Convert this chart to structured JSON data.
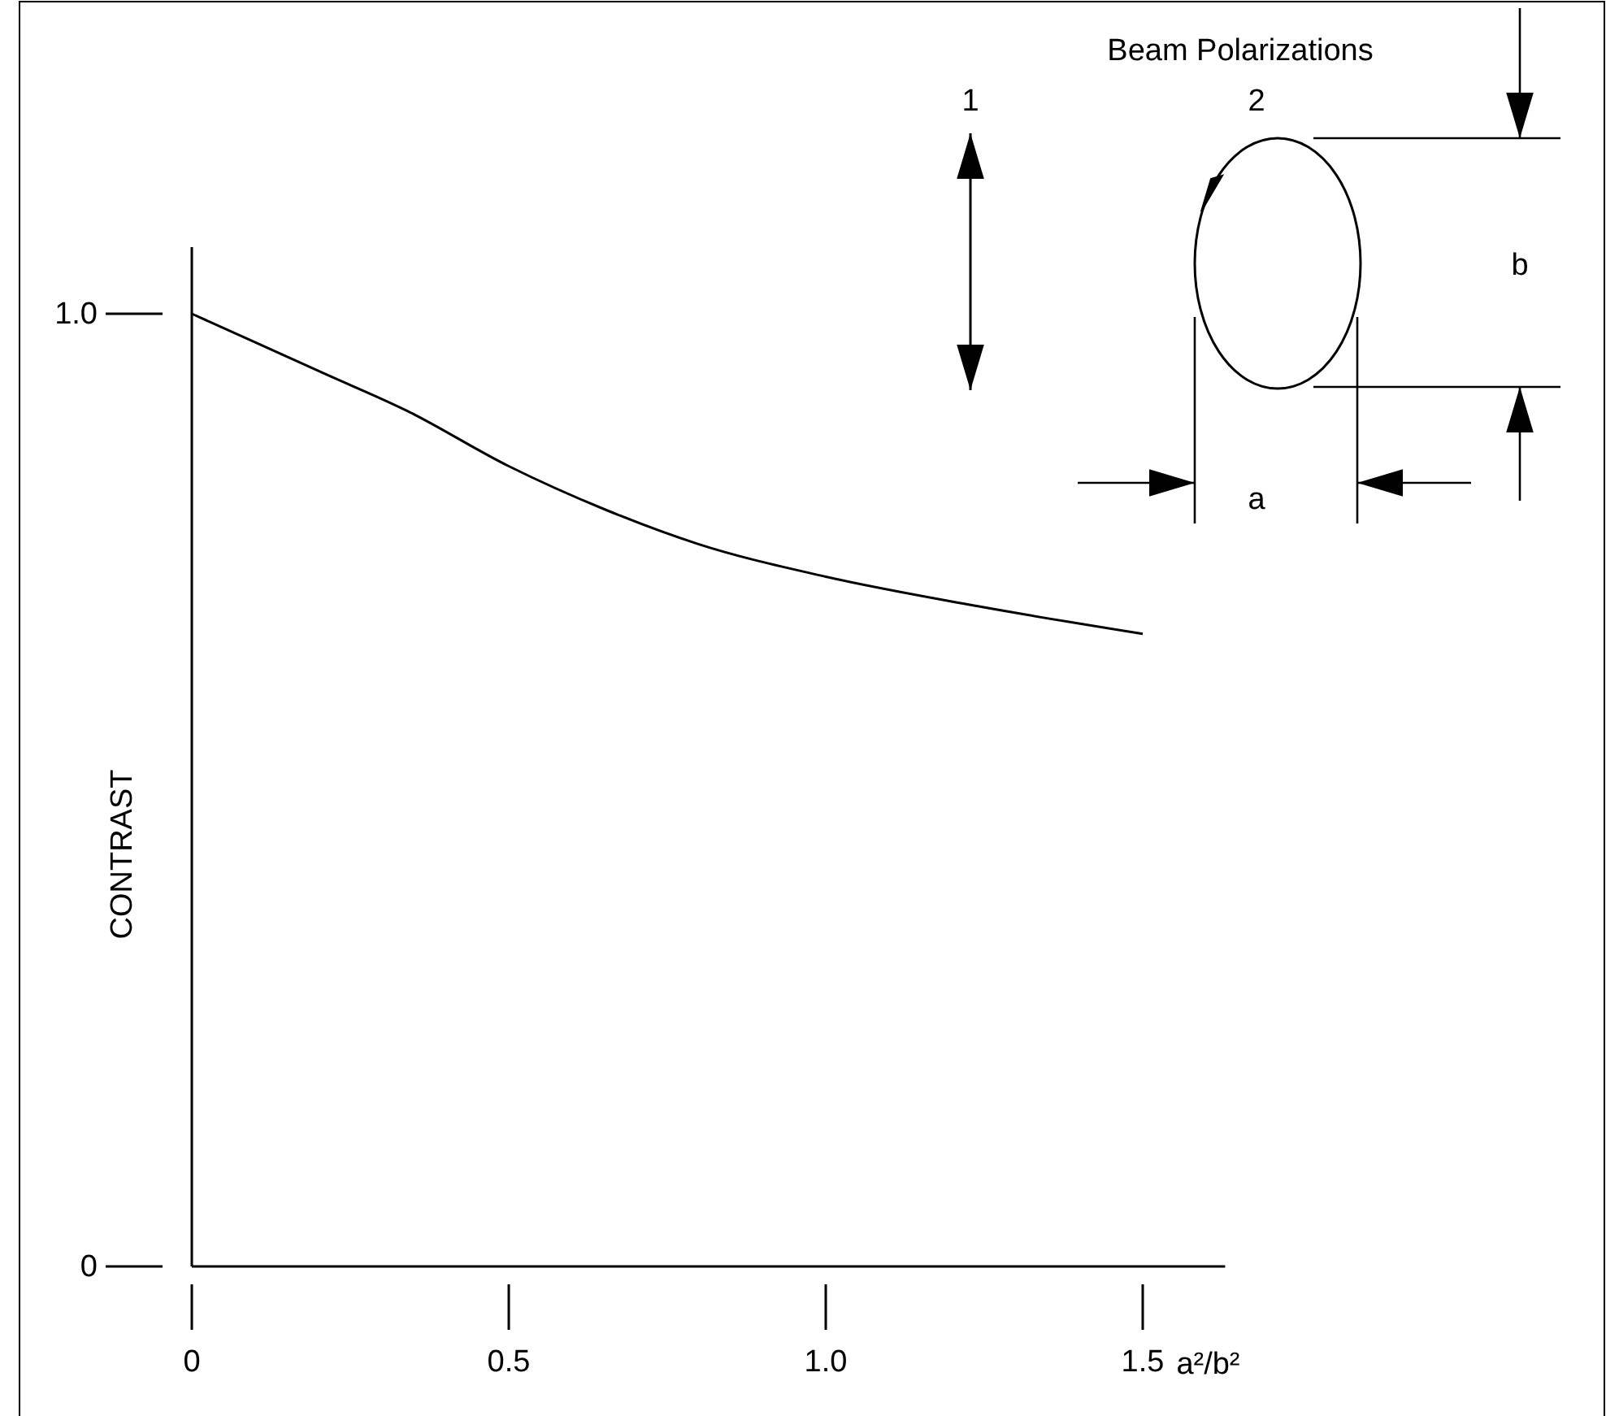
{
  "chart_data": {
    "type": "line",
    "xlabel": "a²/b²",
    "ylabel": "CONTRAST",
    "x": [
      0,
      0.1,
      0.21,
      0.34,
      0.5,
      0.65,
      0.8,
      1.0,
      1.24,
      1.5
    ],
    "series": [
      {
        "color": "#000000",
        "values": [
          1.0,
          0.97,
          0.937,
          0.898,
          0.84,
          0.795,
          0.758,
          0.724,
          0.693,
          0.664
        ]
      }
    ],
    "xlim": [
      0,
      1.63
    ],
    "ylim": [
      0,
      1.07
    ],
    "xticks": [
      0,
      0.5,
      {
        "value": 1,
        "label": "1.0"
      },
      1.5
    ],
    "yticks": [
      0,
      {
        "value": 1,
        "label": "1.0"
      }
    ],
    "marker": "none",
    "line_style": "solid",
    "annotations": [
      "Beam Polarizations",
      "1",
      "2",
      "b",
      "a"
    ]
  }
}
